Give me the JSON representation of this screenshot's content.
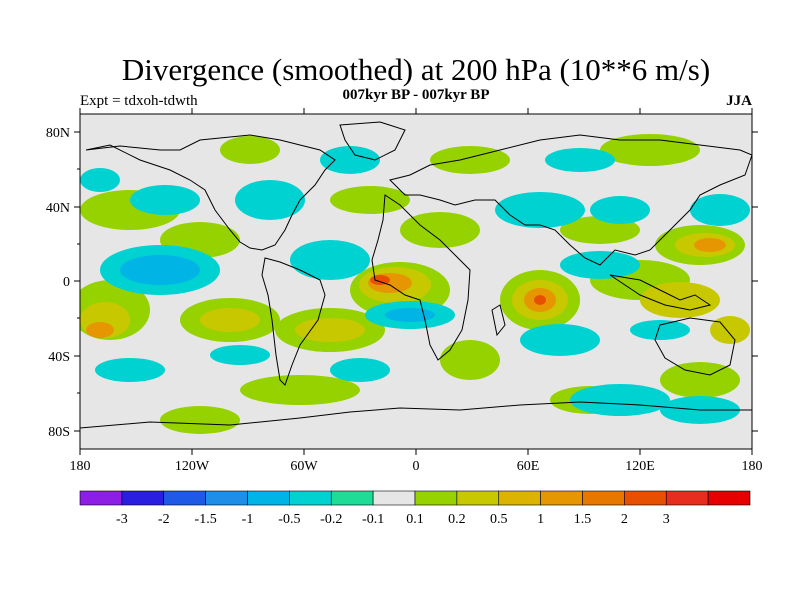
{
  "title": "Divergence (smoothed) at 200 hPa (10**6 m/s)",
  "subtitle": "007kyr BP - 007kyr BP",
  "left_label": "Expt = tdxoh-tdwth",
  "right_label": "JJA",
  "axes": {
    "lat_ticks": [
      "80N",
      "40N",
      "0",
      "40S",
      "80S"
    ],
    "lon_ticks": [
      "180",
      "120W",
      "60W",
      "0",
      "60E",
      "120E",
      "180"
    ]
  },
  "colorbar": {
    "colors": [
      "#8c1ee6",
      "#2a1ee0",
      "#1e5ae6",
      "#1e8ee6",
      "#00b4e6",
      "#00d2d2",
      "#1edc96",
      "#e6e6e6",
      "#96d200",
      "#c8c800",
      "#dcb400",
      "#e69600",
      "#e67800",
      "#e65000",
      "#e62d1e",
      "#e60000"
    ],
    "labels": [
      "-3",
      "-2",
      "-1.5",
      "-1",
      "-0.5",
      "-0.2",
      "-0.1",
      "0.1",
      "0.2",
      "0.5",
      "1",
      "1.5",
      "2",
      "3"
    ]
  },
  "map_colors": {
    "background": "#e6e6e6",
    "coast": "#000000"
  }
}
